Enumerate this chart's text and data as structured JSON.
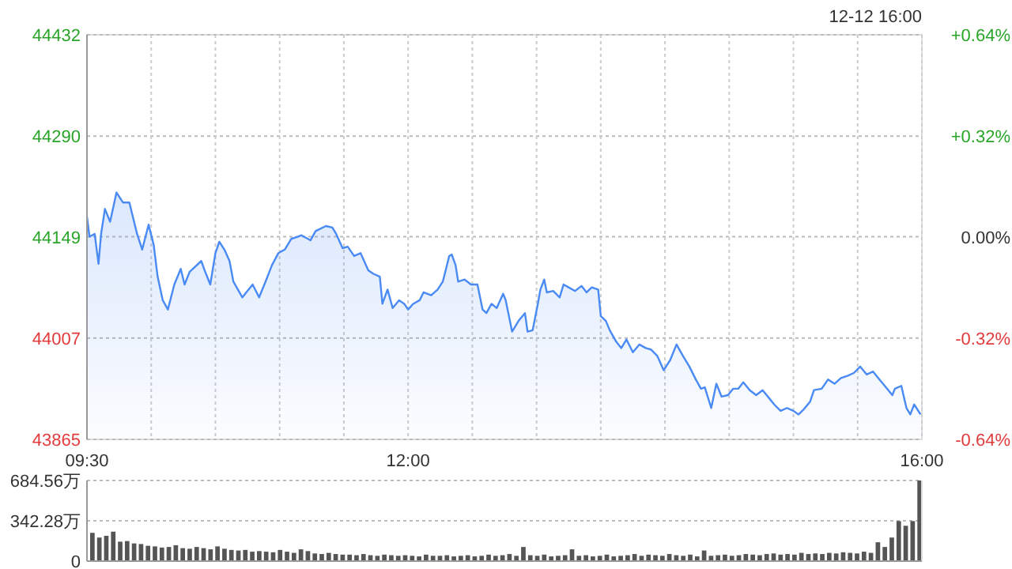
{
  "chart_data": [
    {
      "type": "area",
      "annotations": [
        "12-12 16:00"
      ],
      "color": "#4a8af4",
      "grid": true,
      "x": [
        9.5,
        9.52,
        9.56,
        9.59,
        9.61,
        9.64,
        9.68,
        9.73,
        9.78,
        9.83,
        9.89,
        9.93,
        9.98,
        10.02,
        10.05,
        10.09,
        10.13,
        10.18,
        10.23,
        10.26,
        10.3,
        10.39,
        10.42,
        10.46,
        10.5,
        10.53,
        10.57,
        10.61,
        10.64,
        10.71,
        10.74,
        10.79,
        10.84,
        10.89,
        10.94,
        10.99,
        11.04,
        11.09,
        11.14,
        11.17,
        11.24,
        11.28,
        11.36,
        11.41,
        11.44,
        11.49,
        11.53,
        11.58,
        11.63,
        11.69,
        11.73,
        11.78,
        11.8,
        11.84,
        11.88,
        11.93,
        11.97,
        12,
        12.04,
        12.09,
        12.12,
        12.18,
        12.23,
        12.27,
        12.29,
        12.32,
        12.34,
        12.37,
        12.39,
        12.44,
        12.49,
        12.54,
        12.58,
        12.61,
        12.65,
        12.69,
        12.74,
        12.76,
        12.81,
        12.86,
        12.91,
        12.93,
        12.97,
        13.01,
        13.03,
        13.06,
        13.08,
        13.13,
        13.18,
        13.21,
        13.25,
        13.3,
        13.35,
        13.39,
        13.43,
        13.48,
        13.5,
        13.54,
        13.57,
        13.62,
        13.66,
        13.7,
        13.75,
        13.8,
        13.85,
        13.89,
        13.94,
        13.99,
        14.04,
        14.09,
        14.14,
        14.19,
        14.24,
        14.28,
        14.31,
        14.36,
        14.4,
        14.44,
        14.49,
        14.53,
        14.57,
        14.61,
        14.66,
        14.71,
        14.76,
        14.81,
        14.85,
        14.9,
        14.95,
        15,
        15.04,
        15.08,
        15.13,
        15.16,
        15.22,
        15.27,
        15.32,
        15.37,
        15.42,
        15.47,
        15.52,
        15.57,
        15.62,
        15.67,
        15.72,
        15.77,
        15.79,
        15.84,
        15.88,
        15.91,
        15.94,
        15.99
      ],
      "values": [
        44177,
        44149,
        44153,
        44111,
        44153,
        44188,
        44170,
        44211,
        44197,
        44197,
        44153,
        44131,
        44166,
        44137,
        44093,
        44060,
        44047,
        44082,
        44104,
        44082,
        44100,
        44115,
        44100,
        44082,
        44126,
        44142,
        44131,
        44115,
        44086,
        44064,
        44071,
        44082,
        44064,
        44086,
        44109,
        44126,
        44131,
        44146,
        44149,
        44151,
        44144,
        44157,
        44164,
        44162,
        44153,
        44133,
        44135,
        44122,
        44126,
        44102,
        44097,
        44093,
        44055,
        44075,
        44049,
        44060,
        44055,
        44047,
        44055,
        44060,
        44071,
        44067,
        44075,
        44086,
        44100,
        44122,
        44124,
        44109,
        44086,
        44089,
        44082,
        44082,
        44047,
        44042,
        44055,
        44049,
        44069,
        44060,
        44016,
        44031,
        44042,
        44016,
        44018,
        44055,
        44075,
        44089,
        44071,
        44073,
        44064,
        44082,
        44078,
        44073,
        44080,
        44071,
        44078,
        44075,
        44038,
        44031,
        44018,
        44002,
        43993,
        44005,
        43987,
        43998,
        43993,
        43991,
        43982,
        43962,
        43976,
        43998,
        43982,
        43967,
        43949,
        43936,
        43938,
        43909,
        43943,
        43925,
        43927,
        43936,
        43936,
        43945,
        43934,
        43927,
        43934,
        43923,
        43914,
        43905,
        43909,
        43905,
        43900,
        43907,
        43918,
        43934,
        43936,
        43949,
        43943,
        43951,
        43954,
        43958,
        43967,
        43956,
        43960,
        43949,
        43938,
        43927,
        43936,
        43940,
        43909,
        43900,
        43914,
        43900
      ],
      "xlim": [
        9.5,
        16
      ],
      "xticks": [
        {
          "value": 9.5,
          "label": "09:30"
        },
        {
          "value": 10,
          "label": null
        },
        {
          "value": 10.5,
          "label": null
        },
        {
          "value": 11,
          "label": null
        },
        {
          "value": 11.5,
          "label": null
        },
        {
          "value": 12,
          "label": "12:00"
        },
        {
          "value": 12.5,
          "label": null
        },
        {
          "value": 13,
          "label": null
        },
        {
          "value": 13.5,
          "label": null
        },
        {
          "value": 14,
          "label": null
        },
        {
          "value": 14.5,
          "label": null
        },
        {
          "value": 15,
          "label": null
        },
        {
          "value": 15.5,
          "label": null
        },
        {
          "value": 16,
          "label": "16:00"
        }
      ],
      "ylim": [
        43865,
        44432
      ],
      "yticks": [
        43865,
        44007,
        44149,
        44290,
        44432
      ],
      "y2lim": [
        -0.64,
        0.64
      ],
      "y2ticks": [
        {
          "value": -0.64,
          "label": "-0.64%"
        },
        {
          "value": -0.32,
          "label": "-0.32%"
        },
        {
          "value": 0,
          "label": "0.00%"
        },
        {
          "value": 0.32,
          "label": "+0.32%"
        },
        {
          "value": 0.64,
          "label": "+0.64%"
        }
      ]
    },
    {
      "type": "bar",
      "color": "#555555",
      "tick_labels": "y",
      "grid": "y",
      "categories": [
        null,
        null,
        null,
        null,
        null,
        null,
        null,
        null,
        null,
        null,
        null,
        null,
        null,
        null,
        null,
        null,
        null,
        null,
        null,
        null,
        null,
        null,
        null,
        null,
        null,
        null,
        null,
        null,
        null,
        null,
        null,
        null,
        null,
        null,
        null,
        null,
        null,
        null,
        null,
        null,
        null,
        null,
        null,
        null,
        null,
        null,
        null,
        null,
        null,
        null,
        null,
        null,
        null,
        null,
        null,
        null,
        null,
        null,
        null,
        null,
        null,
        null,
        null,
        null,
        null,
        null,
        null,
        null,
        null,
        null,
        null,
        null,
        null,
        null,
        null,
        null,
        null,
        null,
        null,
        null,
        null,
        null,
        null,
        null,
        null,
        null,
        null,
        null,
        null,
        null,
        null,
        null,
        null,
        null,
        null,
        null,
        null,
        null,
        null,
        null,
        null,
        null,
        null,
        null,
        null,
        null,
        null,
        null,
        null,
        null,
        null,
        null,
        null,
        null,
        null,
        null,
        null,
        null,
        null,
        null
      ],
      "values": [
        240,
        200,
        215,
        250,
        165,
        170,
        150,
        145,
        130,
        125,
        115,
        120,
        135,
        110,
        105,
        120,
        110,
        100,
        125,
        105,
        95,
        90,
        95,
        80,
        85,
        80,
        75,
        95,
        80,
        70,
        100,
        85,
        65,
        60,
        70,
        60,
        55,
        55,
        50,
        60,
        50,
        45,
        55,
        50,
        45,
        50,
        45,
        40,
        55,
        45,
        45,
        50,
        40,
        45,
        50,
        40,
        45,
        55,
        45,
        50,
        60,
        45,
        120,
        50,
        45,
        55,
        40,
        45,
        50,
        100,
        45,
        50,
        40,
        45,
        55,
        40,
        45,
        50,
        60,
        45,
        55,
        50,
        45,
        60,
        50,
        45,
        55,
        40,
        90,
        45,
        50,
        55,
        45,
        50,
        60,
        55,
        50,
        60,
        65,
        55,
        60,
        55,
        70,
        60,
        65,
        60,
        70,
        65,
        75,
        70,
        65,
        80,
        70,
        160,
        120,
        200,
        340,
        300,
        340,
        684.56
      ],
      "ylim": [
        0,
        684.56
      ],
      "yticks": [
        0,
        {
          "value": 342.28,
          "label": "342.28万"
        },
        {
          "value": 684.56,
          "label": "684.56万"
        }
      ]
    }
  ]
}
